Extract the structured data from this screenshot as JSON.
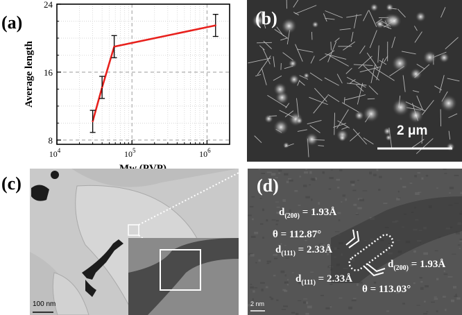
{
  "figure": {
    "panel_labels": {
      "a": "(a)",
      "b": "(b)",
      "c": "(c)",
      "d": "(d)"
    },
    "panel_b": {
      "scale_label": "2 μm"
    },
    "panel_c": {
      "scale_label": "100 nm"
    },
    "panel_d": {
      "scale_label": "2 nm",
      "annotations": {
        "d200_top_main": "d",
        "d200_top_sub": "(200)",
        "d200_top_val": " = 1.93Å",
        "theta_top": "θ = 112.87°",
        "d111_top_main": "d",
        "d111_top_sub": "(111)",
        "d111_top_val": " = 2.33Å",
        "d111_bot_main": "d",
        "d111_bot_sub": "(111)",
        "d111_bot_val": " = 2.33Å",
        "d200_bot_main": "d",
        "d200_bot_sub": "(200)",
        "d200_bot_val": " = 1.93Å",
        "theta_bot": "θ = 113.03°"
      }
    }
  },
  "chart_data": {
    "type": "line",
    "xscale": "log",
    "x": [
      30000,
      40000,
      58000,
      1300000
    ],
    "y": [
      10.2,
      14.2,
      19.0,
      21.5
    ],
    "yerr": [
      1.3,
      1.3,
      1.3,
      1.3
    ],
    "xlim": [
      10000,
      2000000
    ],
    "ylim": [
      7.5,
      24
    ],
    "xlabel": "Mw (PVP)",
    "ylabel": "Average length",
    "yticks": [
      "8",
      "16",
      "24"
    ],
    "xticks": [
      {
        "base": "10",
        "exp": "4"
      },
      {
        "base": "10",
        "exp": "5"
      },
      {
        "base": "10",
        "exp": "6"
      }
    ],
    "grid": true,
    "line_color": "#e8211d"
  }
}
